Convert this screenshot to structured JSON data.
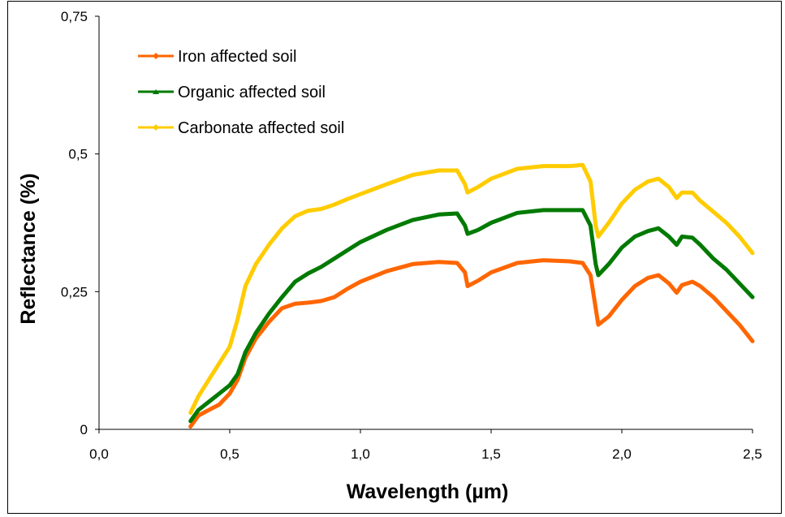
{
  "chart_data": {
    "type": "line",
    "title": "",
    "xlabel": "Wavelength (µm)",
    "ylabel": "Reflectance (%)",
    "xlim": [
      0,
      2.5
    ],
    "ylim": [
      0,
      0.75
    ],
    "x_ticks": [
      0,
      0.5,
      1.0,
      1.5,
      2.0,
      2.5
    ],
    "x_tick_labels": [
      "0,0",
      "0,5",
      "1,0",
      "1,5",
      "2,0",
      "2,5"
    ],
    "y_ticks": [
      0,
      0.25,
      0.5,
      0.75
    ],
    "y_tick_labels": [
      "0",
      "0,25",
      "0,5",
      "0,75"
    ],
    "grid": false,
    "legend_position": "top-left",
    "series": [
      {
        "name": "Iron affected soil",
        "color": "#FF6600",
        "marker": "diamond",
        "x": [
          0.35,
          0.38,
          0.42,
          0.46,
          0.5,
          0.53,
          0.56,
          0.6,
          0.65,
          0.7,
          0.75,
          0.8,
          0.85,
          0.9,
          0.95,
          1.0,
          1.1,
          1.2,
          1.3,
          1.37,
          1.4,
          1.41,
          1.45,
          1.5,
          1.6,
          1.7,
          1.8,
          1.85,
          1.88,
          1.9,
          1.91,
          1.95,
          2.0,
          2.05,
          2.1,
          2.14,
          2.18,
          2.21,
          2.23,
          2.27,
          2.3,
          2.35,
          2.4,
          2.45,
          2.5
        ],
        "values": [
          0.005,
          0.025,
          0.035,
          0.045,
          0.065,
          0.09,
          0.13,
          0.165,
          0.195,
          0.22,
          0.228,
          0.23,
          0.233,
          0.24,
          0.255,
          0.268,
          0.287,
          0.3,
          0.304,
          0.302,
          0.285,
          0.26,
          0.27,
          0.285,
          0.302,
          0.307,
          0.305,
          0.302,
          0.28,
          0.22,
          0.19,
          0.205,
          0.235,
          0.26,
          0.275,
          0.28,
          0.265,
          0.248,
          0.262,
          0.268,
          0.26,
          0.24,
          0.215,
          0.19,
          0.16
        ]
      },
      {
        "name": "Organic affected soil",
        "color": "#007A00",
        "marker": "triangle",
        "x": [
          0.35,
          0.38,
          0.42,
          0.46,
          0.5,
          0.53,
          0.56,
          0.6,
          0.65,
          0.7,
          0.75,
          0.8,
          0.85,
          0.9,
          0.95,
          1.0,
          1.1,
          1.2,
          1.3,
          1.37,
          1.4,
          1.41,
          1.45,
          1.5,
          1.6,
          1.7,
          1.8,
          1.85,
          1.88,
          1.9,
          1.91,
          1.95,
          2.0,
          2.05,
          2.1,
          2.14,
          2.18,
          2.21,
          2.23,
          2.27,
          2.3,
          2.35,
          2.4,
          2.45,
          2.5
        ],
        "values": [
          0.015,
          0.035,
          0.05,
          0.065,
          0.08,
          0.1,
          0.14,
          0.175,
          0.21,
          0.24,
          0.268,
          0.283,
          0.295,
          0.31,
          0.325,
          0.34,
          0.362,
          0.38,
          0.39,
          0.392,
          0.37,
          0.355,
          0.362,
          0.375,
          0.393,
          0.398,
          0.398,
          0.398,
          0.37,
          0.3,
          0.28,
          0.3,
          0.33,
          0.35,
          0.36,
          0.365,
          0.35,
          0.335,
          0.35,
          0.348,
          0.335,
          0.31,
          0.29,
          0.265,
          0.24
        ]
      },
      {
        "name": "Carbonate affected soil",
        "color": "#FFCC00",
        "marker": "diamond",
        "x": [
          0.35,
          0.38,
          0.42,
          0.46,
          0.5,
          0.53,
          0.56,
          0.6,
          0.65,
          0.7,
          0.75,
          0.8,
          0.85,
          0.9,
          0.95,
          1.0,
          1.1,
          1.2,
          1.3,
          1.37,
          1.4,
          1.41,
          1.45,
          1.5,
          1.6,
          1.7,
          1.8,
          1.85,
          1.88,
          1.9,
          1.91,
          1.95,
          2.0,
          2.05,
          2.1,
          2.14,
          2.18,
          2.21,
          2.23,
          2.27,
          2.3,
          2.35,
          2.4,
          2.45,
          2.5
        ],
        "values": [
          0.03,
          0.06,
          0.09,
          0.12,
          0.15,
          0.2,
          0.26,
          0.3,
          0.335,
          0.365,
          0.387,
          0.397,
          0.4,
          0.408,
          0.418,
          0.427,
          0.445,
          0.462,
          0.47,
          0.47,
          0.445,
          0.43,
          0.44,
          0.455,
          0.473,
          0.478,
          0.478,
          0.48,
          0.45,
          0.37,
          0.35,
          0.375,
          0.41,
          0.435,
          0.45,
          0.455,
          0.44,
          0.42,
          0.43,
          0.43,
          0.415,
          0.395,
          0.375,
          0.35,
          0.32
        ]
      }
    ]
  }
}
